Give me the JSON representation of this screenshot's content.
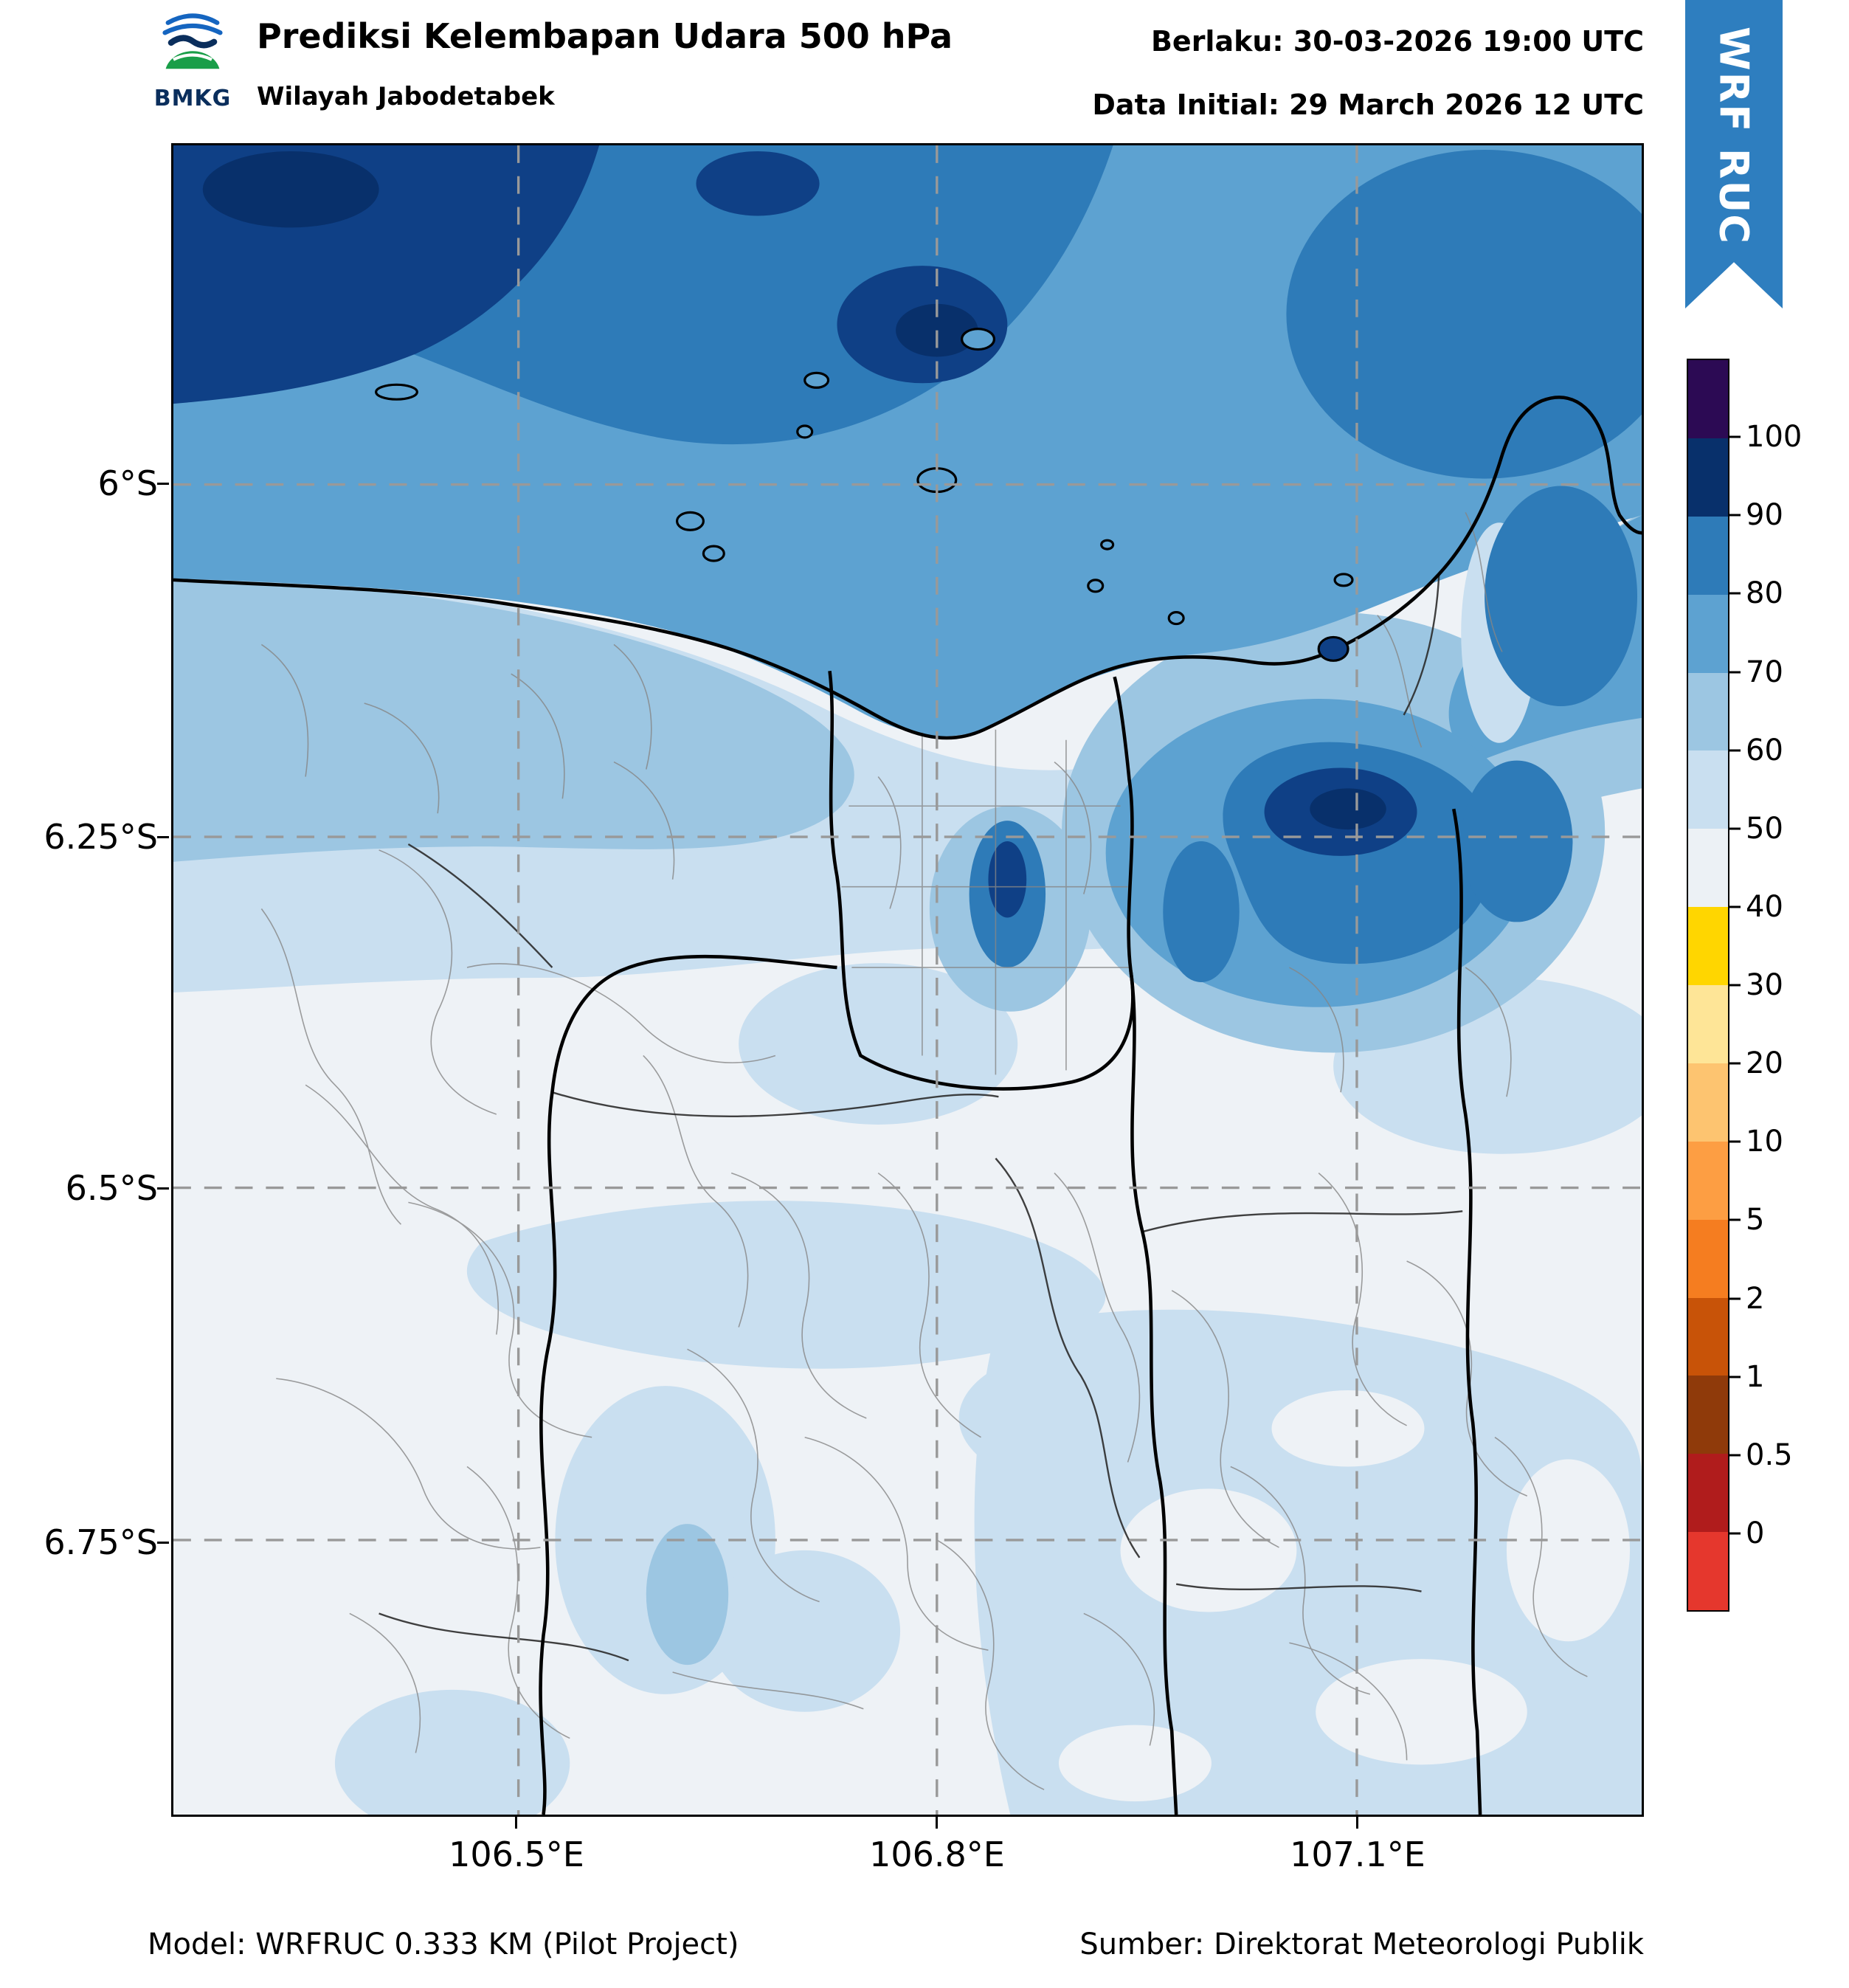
{
  "header": {
    "agency_logo_text": "BMKG",
    "title": "Prediksi Kelembapan Udara 500 hPa",
    "subtitle": "Wilayah Jabodetabek",
    "valid_line": "Berlaku: 30-03-2026 19:00 UTC",
    "initial_line": "Data Initial: 29 March 2026 12 UTC"
  },
  "ribbon": {
    "label": "WRF RUC",
    "color": "#2e7ebf"
  },
  "map": {
    "x_tick_labels": [
      "106.5°E",
      "106.8°E",
      "107.1°E"
    ],
    "y_tick_labels": [
      "6°S",
      "6.25°S",
      "6.5°S",
      "6.75°S"
    ]
  },
  "colorbar": {
    "tick_labels": [
      "100",
      "90",
      "80",
      "70",
      "60",
      "50",
      "40",
      "30",
      "20",
      "10",
      "5",
      "2",
      "1",
      "0.5",
      "0"
    ],
    "segment_colors_top_to_bottom": [
      "#2c0a54",
      "#08306b",
      "#2e7bb8",
      "#5da2d1",
      "#9cc6e2",
      "#c9dff0",
      "#ecf1f5",
      "#ffd600",
      "#fee597",
      "#fdc470",
      "#fd9e43",
      "#f57d20",
      "#c85308",
      "#8f3a0a",
      "#b01c1c",
      "#e5372d"
    ]
  },
  "footer": {
    "model_line": "Model: WRFRUC 0.333 KM (Pilot Project)",
    "source_line": "Sumber: Direktorat Meteorologi Publik"
  },
  "chart_data": {
    "type": "heatmap",
    "title": "Prediksi Kelembapan Udara 500 hPa",
    "region": "Wilayah Jabodetabek",
    "valid_time": "30-03-2026 19:00 UTC",
    "initial_time": "29 March 2026 12 UTC",
    "model": "WRFRUC 0.333 KM (Pilot Project)",
    "source": "Direktorat Meteorologi Publik",
    "x_axis": {
      "ticks": [
        "106.5°E",
        "106.8°E",
        "107.1°E"
      ]
    },
    "y_axis": {
      "ticks": [
        "6°S",
        "6.25°S",
        "6.5°S",
        "6.75°S"
      ]
    },
    "colorbar_levels_top_to_bottom": [
      100,
      90,
      80,
      70,
      60,
      50,
      40,
      30,
      20,
      10,
      5,
      2,
      1,
      0.5,
      0
    ],
    "field_summary": "Values 70-100 over the Java Sea in the north with dark maxima 90-100 in the northwest corner and isolated 90-100 cells near 6.2S/106.95E; mostly 40-60 over inland Jabodetabek with 50-60 patches across the south."
  }
}
